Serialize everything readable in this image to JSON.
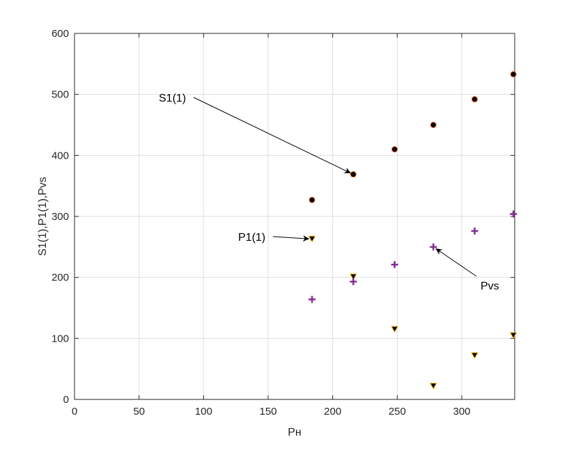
{
  "chart_data": {
    "type": "scatter",
    "title": "",
    "xlabel": "Pн",
    "ylabel": "S1(1),P1(1),Pvs",
    "xlim": [
      0,
      341
    ],
    "ylim": [
      0,
      600
    ],
    "xticks": [
      0,
      50,
      100,
      150,
      200,
      250,
      300
    ],
    "yticks": [
      0,
      100,
      200,
      300,
      400,
      500,
      600
    ],
    "grid": true,
    "series": [
      {
        "name": "S1(1)",
        "marker": "circle",
        "color": "#000000",
        "edge": "#e8641e",
        "x": [
          184,
          216,
          248,
          278,
          310,
          340
        ],
        "y": [
          327,
          369,
          410,
          450,
          492,
          533
        ]
      },
      {
        "name": "P1(1)",
        "marker": "triangle-down",
        "color": "#000000",
        "edge": "#f0b400",
        "x": [
          184,
          216,
          248,
          278,
          310,
          340
        ],
        "y": [
          263,
          201,
          115,
          22,
          72,
          105
        ]
      },
      {
        "name": "Pvs",
        "marker": "plus",
        "color": "#7e2f8e",
        "x": [
          184,
          216,
          248,
          278,
          310,
          340
        ],
        "y": [
          164,
          193,
          221,
          250,
          276,
          304
        ]
      }
    ],
    "annotations": [
      {
        "text": "S1(1)",
        "target_x": 216,
        "target_y": 369
      },
      {
        "text": "P1(1)",
        "target_x": 184,
        "target_y": 263
      },
      {
        "text": "Pvs",
        "target_x": 278,
        "target_y": 250
      }
    ]
  }
}
